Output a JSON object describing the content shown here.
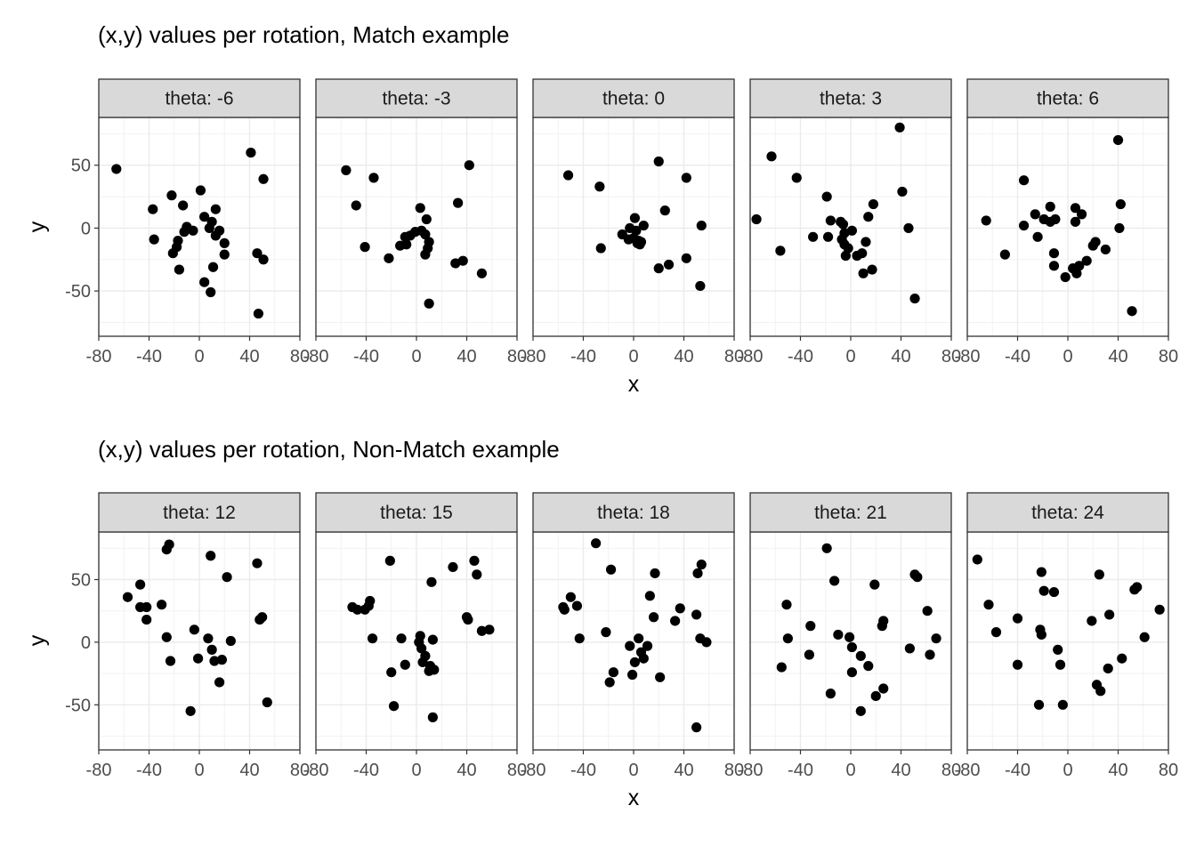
{
  "chart_data": [
    {
      "type": "scatter",
      "title": "(x,y) values per rotation, Match example",
      "xlabel": "x",
      "ylabel": "y",
      "xlim": [
        -80,
        80
      ],
      "ylim": [
        -86,
        88
      ],
      "xticks": [
        -80,
        -40,
        0,
        40,
        80
      ],
      "yticks": [
        -50,
        0,
        50
      ],
      "xtick_labels": [
        "-80",
        "-40",
        "0",
        "40",
        "80"
      ],
      "ytick_labels": [
        "-50",
        "0",
        "50"
      ],
      "grid": true,
      "facet_label_prefix": "theta: ",
      "panels": [
        {
          "label": "theta: -6",
          "points": [
            [
              -66,
              47
            ],
            [
              -37,
              15
            ],
            [
              -36,
              -9
            ],
            [
              -22,
              26
            ],
            [
              -21,
              -20
            ],
            [
              -18,
              -15
            ],
            [
              -17,
              -10
            ],
            [
              -16,
              -33
            ],
            [
              -13,
              18
            ],
            [
              -12,
              -3
            ],
            [
              -10,
              1
            ],
            [
              -5,
              -2
            ],
            [
              1,
              30
            ],
            [
              4,
              9
            ],
            [
              4,
              -43
            ],
            [
              8,
              0
            ],
            [
              9,
              -51
            ],
            [
              10,
              5
            ],
            [
              11,
              -31
            ],
            [
              13,
              15
            ],
            [
              13,
              -6
            ],
            [
              16,
              -2
            ],
            [
              20,
              -12
            ],
            [
              20,
              -21
            ],
            [
              41,
              60
            ],
            [
              46,
              -20
            ],
            [
              47,
              -68
            ],
            [
              51,
              39
            ],
            [
              51,
              -25
            ]
          ]
        },
        {
          "label": "theta: -3",
          "points": [
            [
              -56,
              46
            ],
            [
              -48,
              18
            ],
            [
              -34,
              40
            ],
            [
              -41,
              -15
            ],
            [
              -22,
              -24
            ],
            [
              -13,
              -14
            ],
            [
              -9,
              -7
            ],
            [
              -8,
              -13
            ],
            [
              -5,
              -6
            ],
            [
              -1,
              -3
            ],
            [
              3,
              16
            ],
            [
              4,
              -2
            ],
            [
              7,
              -5
            ],
            [
              7,
              -21
            ],
            [
              8,
              7
            ],
            [
              9,
              -16
            ],
            [
              10,
              -11
            ],
            [
              10,
              -60
            ],
            [
              33,
              20
            ],
            [
              31,
              -28
            ],
            [
              37,
              -26
            ],
            [
              42,
              50
            ],
            [
              52,
              -36
            ]
          ]
        },
        {
          "label": "theta: 0",
          "points": [
            [
              -52,
              42
            ],
            [
              -27,
              33
            ],
            [
              -26,
              -16
            ],
            [
              -9,
              -5
            ],
            [
              -4,
              -9
            ],
            [
              -3,
              0
            ],
            [
              0,
              -8
            ],
            [
              1,
              8
            ],
            [
              2,
              -2
            ],
            [
              3,
              -12
            ],
            [
              4,
              -10
            ],
            [
              5,
              -13
            ],
            [
              6,
              -11
            ],
            [
              8,
              2
            ],
            [
              20,
              53
            ],
            [
              20,
              -32
            ],
            [
              25,
              14
            ],
            [
              28,
              -29
            ],
            [
              42,
              40
            ],
            [
              42,
              -24
            ],
            [
              53,
              -46
            ],
            [
              54,
              2
            ]
          ]
        },
        {
          "label": "theta: 3",
          "points": [
            [
              -75,
              7
            ],
            [
              -63,
              57
            ],
            [
              -56,
              -18
            ],
            [
              -43,
              40
            ],
            [
              -30,
              -7
            ],
            [
              -19,
              25
            ],
            [
              -18,
              -7
            ],
            [
              -16,
              6
            ],
            [
              -8,
              5
            ],
            [
              -7,
              -9
            ],
            [
              -6,
              3
            ],
            [
              -5,
              -4
            ],
            [
              -5,
              -13
            ],
            [
              -4,
              -22
            ],
            [
              -2,
              -16
            ],
            [
              1,
              -2
            ],
            [
              5,
              -22
            ],
            [
              9,
              -20
            ],
            [
              10,
              -36
            ],
            [
              12,
              -11
            ],
            [
              14,
              9
            ],
            [
              17,
              -33
            ],
            [
              18,
              19
            ],
            [
              39,
              80
            ],
            [
              41,
              29
            ],
            [
              46,
              0
            ],
            [
              51,
              -56
            ]
          ]
        },
        {
          "label": "theta: 6",
          "points": [
            [
              -65,
              6
            ],
            [
              -50,
              -21
            ],
            [
              -35,
              38
            ],
            [
              -35,
              2
            ],
            [
              -26,
              11
            ],
            [
              -24,
              -7
            ],
            [
              -19,
              7
            ],
            [
              -14,
              17
            ],
            [
              -14,
              5
            ],
            [
              -11,
              -20
            ],
            [
              -11,
              -30
            ],
            [
              -10,
              7
            ],
            [
              -2,
              -39
            ],
            [
              4,
              -32
            ],
            [
              6,
              16
            ],
            [
              6,
              5
            ],
            [
              7,
              -36
            ],
            [
              9,
              -30
            ],
            [
              11,
              11
            ],
            [
              15,
              -26
            ],
            [
              20,
              -14
            ],
            [
              22,
              -11
            ],
            [
              30,
              -17
            ],
            [
              40,
              70
            ],
            [
              41,
              0
            ],
            [
              42,
              19
            ],
            [
              51,
              -66
            ]
          ]
        }
      ]
    },
    {
      "type": "scatter",
      "title": "(x,y) values per rotation, Non-Match example",
      "xlabel": "x",
      "ylabel": "y",
      "xlim": [
        -80,
        80
      ],
      "ylim": [
        -86,
        88
      ],
      "xticks": [
        -80,
        -40,
        0,
        40,
        80
      ],
      "yticks": [
        -50,
        0,
        50
      ],
      "xtick_labels": [
        "-80",
        "-40",
        "0",
        "40",
        "80"
      ],
      "ytick_labels": [
        "-50",
        "0",
        "50"
      ],
      "grid": true,
      "facet_label_prefix": "theta: ",
      "panels": [
        {
          "label": "theta: 12",
          "points": [
            [
              -57,
              36
            ],
            [
              -47,
              46
            ],
            [
              -47,
              28
            ],
            [
              -42,
              28
            ],
            [
              -42,
              18
            ],
            [
              -30,
              30
            ],
            [
              -26,
              74
            ],
            [
              -24,
              78
            ],
            [
              -26,
              4
            ],
            [
              -23,
              -15
            ],
            [
              -4,
              10
            ],
            [
              -1,
              -13
            ],
            [
              7,
              3
            ],
            [
              9,
              69
            ],
            [
              10,
              -6
            ],
            [
              12,
              -15
            ],
            [
              16,
              -32
            ],
            [
              18,
              -14
            ],
            [
              22,
              52
            ],
            [
              25,
              1
            ],
            [
              46,
              63
            ],
            [
              48,
              18
            ],
            [
              50,
              20
            ],
            [
              54,
              -48
            ],
            [
              -7,
              -55
            ]
          ]
        },
        {
          "label": "theta: 15",
          "points": [
            [
              -51,
              28
            ],
            [
              -47,
              26
            ],
            [
              -41,
              26
            ],
            [
              -38,
              29
            ],
            [
              -37,
              33
            ],
            [
              -35,
              3
            ],
            [
              -21,
              65
            ],
            [
              -20,
              -24
            ],
            [
              -18,
              -51
            ],
            [
              -12,
              3
            ],
            [
              -9,
              -18
            ],
            [
              2,
              0
            ],
            [
              3,
              5
            ],
            [
              4,
              -5
            ],
            [
              5,
              -16
            ],
            [
              7,
              -11
            ],
            [
              10,
              -23
            ],
            [
              11,
              -19
            ],
            [
              12,
              48
            ],
            [
              13,
              -60
            ],
            [
              13,
              2
            ],
            [
              14,
              -22
            ],
            [
              29,
              60
            ],
            [
              40,
              20
            ],
            [
              41,
              18
            ],
            [
              46,
              65
            ],
            [
              48,
              54
            ],
            [
              52,
              9
            ],
            [
              58,
              10
            ]
          ]
        },
        {
          "label": "theta: 18",
          "points": [
            [
              -56,
              28
            ],
            [
              -55,
              26
            ],
            [
              -50,
              36
            ],
            [
              -45,
              29
            ],
            [
              -43,
              3
            ],
            [
              -30,
              79
            ],
            [
              -22,
              8
            ],
            [
              -18,
              58
            ],
            [
              -19,
              -32
            ],
            [
              -16,
              -24
            ],
            [
              -3,
              -3
            ],
            [
              -1,
              -26
            ],
            [
              1,
              -16
            ],
            [
              4,
              3
            ],
            [
              6,
              -8
            ],
            [
              8,
              -13
            ],
            [
              11,
              -3
            ],
            [
              13,
              37
            ],
            [
              16,
              20
            ],
            [
              17,
              55
            ],
            [
              21,
              -28
            ],
            [
              33,
              17
            ],
            [
              37,
              27
            ],
            [
              50,
              22
            ],
            [
              51,
              55
            ],
            [
              54,
              62
            ],
            [
              53,
              3
            ],
            [
              58,
              0
            ],
            [
              50,
              -68
            ]
          ]
        },
        {
          "label": "theta: 21",
          "points": [
            [
              -55,
              -20
            ],
            [
              -51,
              30
            ],
            [
              -50,
              3
            ],
            [
              -32,
              13
            ],
            [
              -33,
              -10
            ],
            [
              -19,
              75
            ],
            [
              -16,
              -41
            ],
            [
              -13,
              49
            ],
            [
              -10,
              6
            ],
            [
              -1,
              4
            ],
            [
              1,
              -4
            ],
            [
              1,
              -24
            ],
            [
              8,
              -11
            ],
            [
              8,
              -55
            ],
            [
              14,
              -19
            ],
            [
              19,
              46
            ],
            [
              20,
              -43
            ],
            [
              25,
              13
            ],
            [
              26,
              17
            ],
            [
              26,
              -37
            ],
            [
              47,
              -5
            ],
            [
              51,
              54
            ],
            [
              53,
              52
            ],
            [
              61,
              25
            ],
            [
              63,
              -10
            ],
            [
              68,
              3
            ]
          ]
        },
        {
          "label": "theta: 24",
          "points": [
            [
              -72,
              66
            ],
            [
              -63,
              30
            ],
            [
              -57,
              8
            ],
            [
              -40,
              -18
            ],
            [
              -40,
              19
            ],
            [
              -23,
              -50
            ],
            [
              -22,
              10
            ],
            [
              -21,
              56
            ],
            [
              -21,
              6
            ],
            [
              -19,
              41
            ],
            [
              -11,
              40
            ],
            [
              -8,
              -6
            ],
            [
              -6,
              -18
            ],
            [
              -4,
              -50
            ],
            [
              19,
              17
            ],
            [
              23,
              -34
            ],
            [
              25,
              54
            ],
            [
              26,
              -39
            ],
            [
              32,
              -21
            ],
            [
              33,
              22
            ],
            [
              43,
              -13
            ],
            [
              53,
              42
            ],
            [
              55,
              44
            ],
            [
              61,
              4
            ],
            [
              73,
              26
            ]
          ]
        }
      ]
    }
  ]
}
